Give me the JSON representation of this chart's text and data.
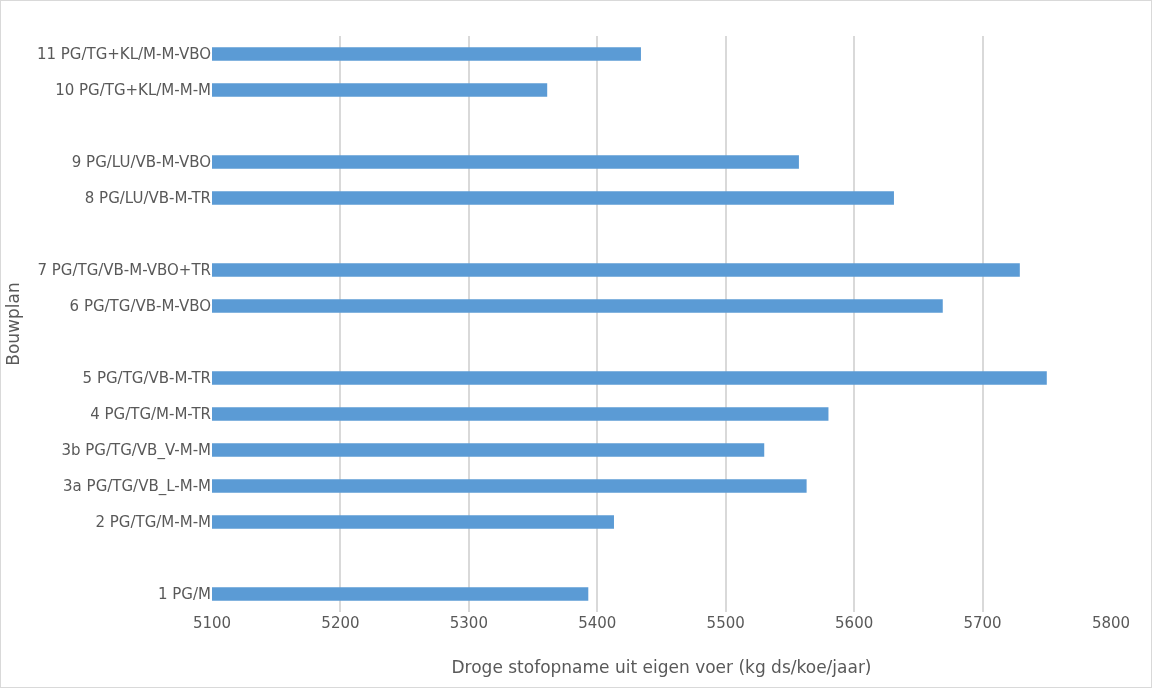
{
  "chart_data": {
    "type": "bar",
    "orientation": "horizontal",
    "xlabel": "Droge stofopname uit eigen voer (kg ds/koe/jaar)",
    "ylabel": "Bouwplan",
    "categories": [
      "11 PG/TG+KL/M-M-VBO",
      "10 PG/TG+KL/M-M-M",
      null,
      "9 PG/LU/VB-M-VBO",
      "8 PG/LU/VB-M-TR",
      null,
      "7 PG/TG/VB-M-VBO+TR",
      "6 PG/TG/VB-M-VBO",
      null,
      "5 PG/TG/VB-M-TR",
      "4 PG/TG/M-M-TR",
      "3b PG/TG/VB_V-M-M",
      "3a PG/TG/VB_L-M-M",
      "2 PG/TG/M-M-M",
      null,
      "1 PG/M"
    ],
    "values": [
      5434,
      5361,
      null,
      5557,
      5631,
      null,
      5729,
      5669,
      null,
      5750,
      5580,
      5530,
      5563,
      5413,
      null,
      5393
    ],
    "color": "#5b9bd5",
    "xlim": [
      5100,
      5800
    ],
    "xticks": [
      5100,
      5200,
      5300,
      5400,
      5500,
      5600,
      5700,
      5800
    ],
    "grid": "x"
  }
}
